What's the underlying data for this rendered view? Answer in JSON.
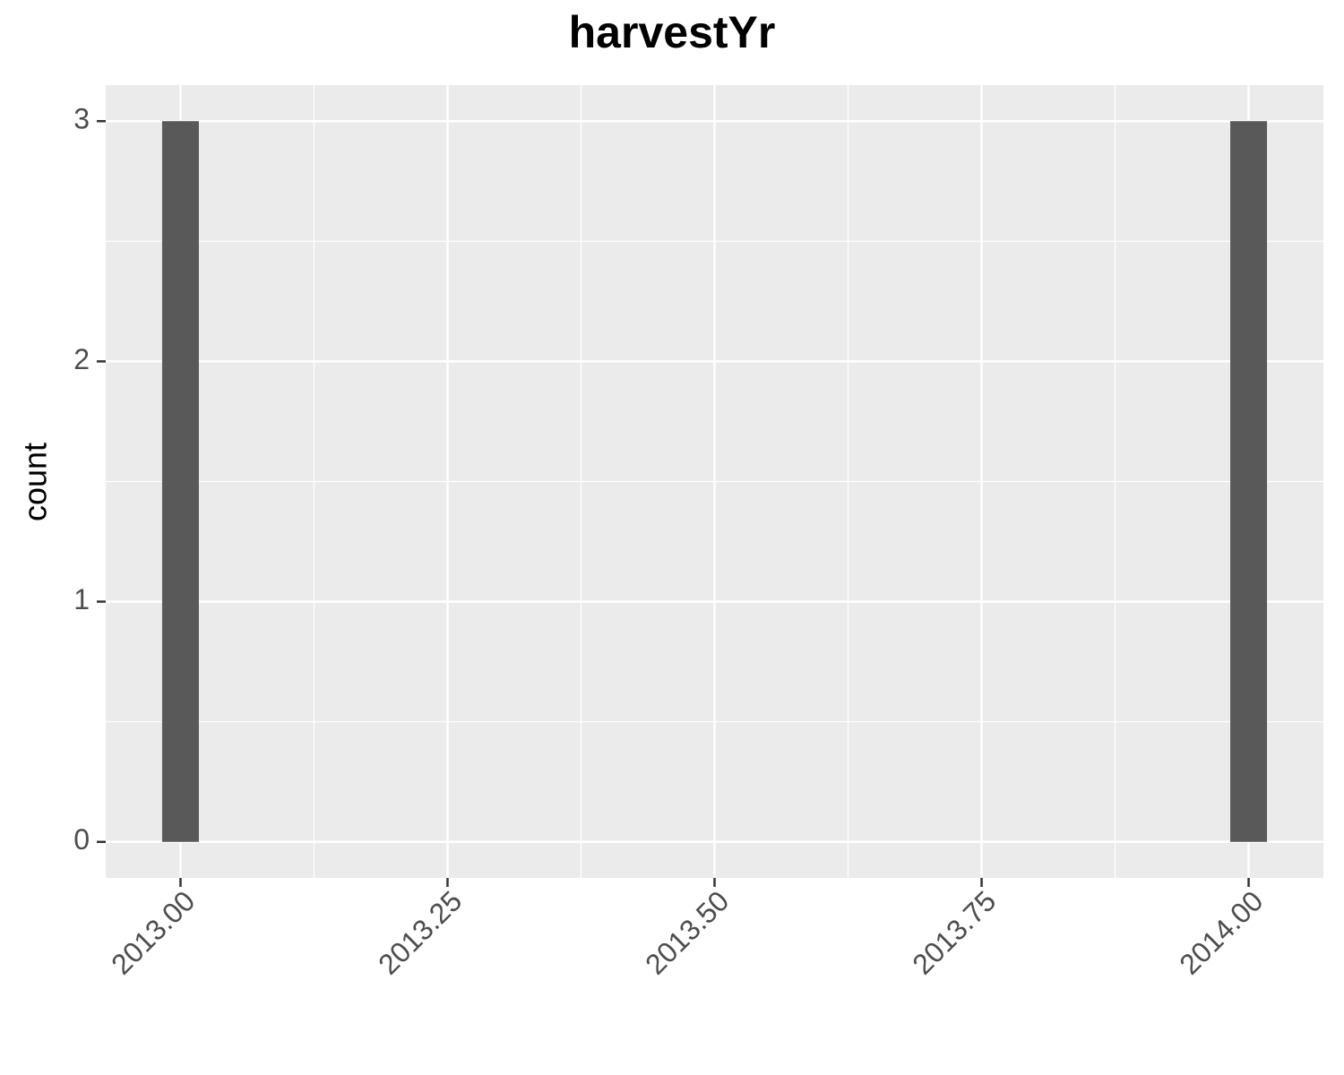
{
  "chart_data": {
    "type": "histogram",
    "title": "harvestYr",
    "y_label": "count",
    "bins": [
      2012.9828,
      2013.0172,
      2013.0517,
      2013.0862,
      2013.1207,
      2013.1552,
      2013.1897,
      2013.2241,
      2013.2586,
      2013.2931,
      2013.3276,
      2013.3621,
      2013.3966,
      2013.431,
      2013.4655,
      2013.5,
      2013.5345,
      2013.569,
      2013.6034,
      2013.6379,
      2013.6724,
      2013.7069,
      2013.7414,
      2013.7759,
      2013.8103,
      2013.8448,
      2013.8793,
      2013.9138,
      2013.9483,
      2013.9828,
      2014.0172
    ],
    "values": [
      3,
      0,
      0,
      0,
      0,
      0,
      0,
      0,
      0,
      0,
      0,
      0,
      0,
      0,
      0,
      0,
      0,
      0,
      0,
      0,
      0,
      0,
      0,
      0,
      0,
      0,
      0,
      0,
      0,
      3
    ],
    "color": "#595959",
    "xlim": [
      2012.93,
      2014.07
    ],
    "xticks": [
      {
        "value": 2013,
        "label": "2013.00"
      },
      {
        "value": 2013.25,
        "label": "2013.25"
      },
      {
        "value": 2013.5,
        "label": "2013.50"
      },
      {
        "value": 2013.75,
        "label": "2013.75"
      },
      {
        "value": 2014,
        "label": "2014.00"
      }
    ],
    "ylim": [
      -0.15,
      3.15
    ],
    "yticks": [
      0,
      1,
      2,
      3
    ],
    "grid": true
  }
}
